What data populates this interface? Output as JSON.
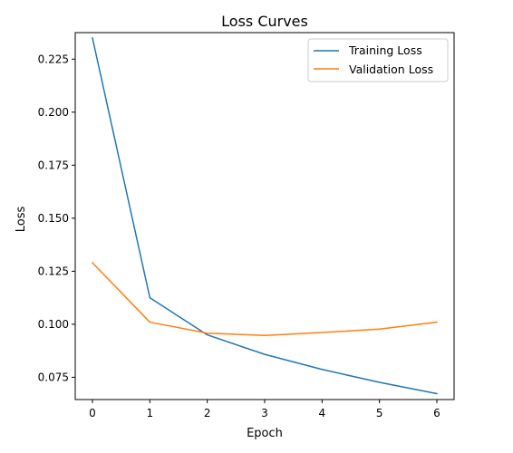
{
  "chart_data": {
    "type": "line",
    "title": "Loss Curves",
    "xlabel": "Epoch",
    "ylabel": "Loss",
    "x": [
      0,
      1,
      2,
      3,
      4,
      5,
      6
    ],
    "xlim": [
      -0.3,
      6.3
    ],
    "ylim": [
      0.0645,
      0.2375
    ],
    "xticks": [
      "0",
      "1",
      "2",
      "3",
      "4",
      "5",
      "6"
    ],
    "yticks": [
      "0.075",
      "0.100",
      "0.125",
      "0.150",
      "0.175",
      "0.200",
      "0.225"
    ],
    "grid": false,
    "legend_position": "top-right",
    "series": [
      {
        "name": "Training Loss",
        "color": "#1f77b4",
        "values": [
          0.235,
          0.1125,
          0.095,
          0.0858,
          0.0787,
          0.0726,
          0.0673
        ]
      },
      {
        "name": "Validation Loss",
        "color": "#ff7f0e",
        "values": [
          0.129,
          0.101,
          0.0958,
          0.0947,
          0.0961,
          0.0977,
          0.101
        ]
      }
    ]
  }
}
